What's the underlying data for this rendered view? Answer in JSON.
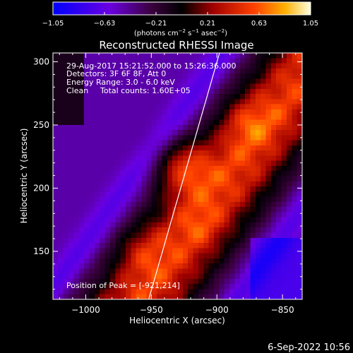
{
  "chart_data": {
    "type": "heatmap",
    "title": "Reconstructed RHESSI Image",
    "xlabel": "Heliocentric X (arcsec)",
    "ylabel": "Heliocentric Y (arcsec)",
    "xlim": [
      -1025,
      -835
    ],
    "ylim": [
      112,
      307
    ],
    "xticks": [
      -1000,
      -950,
      -900,
      -850
    ],
    "xtick_labels": [
      "−1000",
      "−950",
      "−900",
      "−850"
    ],
    "yticks": [
      150,
      200,
      250,
      300
    ],
    "ytick_labels": [
      "150",
      "200",
      "250",
      "300"
    ],
    "colorbar": {
      "min": -1.05,
      "max": 1.05,
      "ticks": [
        -1.05,
        -0.63,
        -0.21,
        0.21,
        0.63,
        1.05
      ],
      "tick_labels": [
        "−1.05",
        "−0.63",
        "−0.21",
        "0.21",
        "0.63",
        "1.05"
      ],
      "unit_main": "(photons cm",
      "unit_sup1": "−2",
      "unit_mid": " s",
      "unit_sup2": "−1",
      "unit_mid2": " asec",
      "unit_sup3": "−2",
      "unit_end": ")"
    },
    "info_lines": [
      "29-Aug-2017 15:21:52.000 to 15:26:36.000",
      "Detectors: 3F 6F 8F, Att 0",
      "Energy Range: 3.0 - 6.0 keV"
    ],
    "clean_label": "Clean",
    "total_counts": "Total counts: 1.60E+05",
    "peak_label": "Position of Peak = [-921,214]",
    "peak": {
      "x": -921,
      "y": 214
    },
    "limb_line": {
      "x": [
        -952,
        -898
      ],
      "y": 112,
      "y2": 307
    },
    "date_stamp": "6-Sep-2022 10:56"
  }
}
